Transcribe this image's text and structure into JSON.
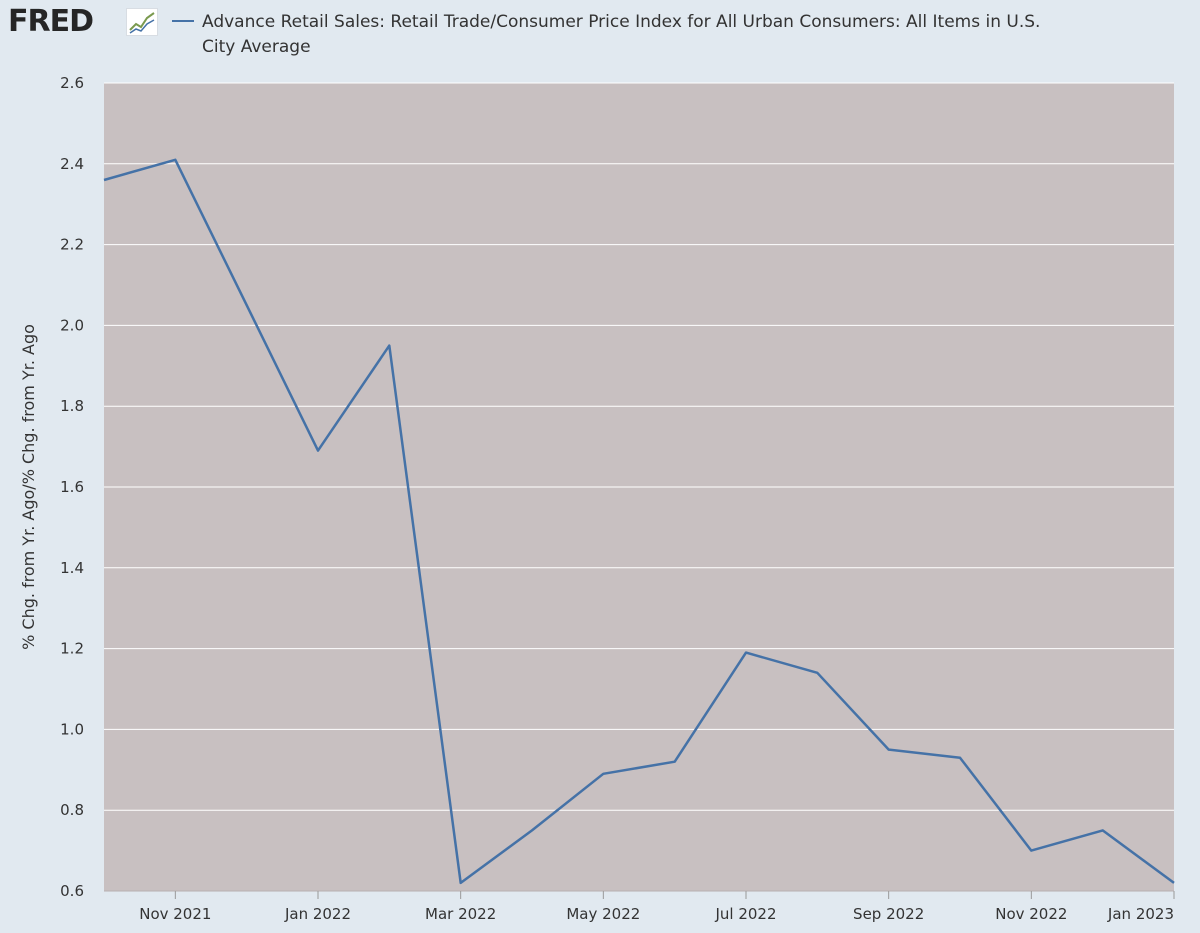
{
  "brand": {
    "logo_text": "FRED",
    "logo_icon": "trend-line-icon"
  },
  "colors": {
    "page_background": "#e1e9f0",
    "plot_background": "#c8c0c1",
    "gridline": "#ffffff",
    "series_line": "#4572a7",
    "axis_text": "#333333"
  },
  "chart_data": {
    "type": "line",
    "title": "",
    "ylabel": "% Chg. from Yr. Ago/% Chg. from Yr. Ago",
    "xlabel": "",
    "ylim": [
      0.6,
      2.6
    ],
    "yticks": [
      0.6,
      0.8,
      1.0,
      1.2,
      1.4,
      1.6,
      1.8,
      2.0,
      2.2,
      2.4,
      2.6
    ],
    "yticks_labels": [
      "0.6",
      "0.8",
      "1.0",
      "1.2",
      "1.4",
      "1.6",
      "1.8",
      "2.0",
      "2.2",
      "2.4",
      "2.6"
    ],
    "xlim": [
      "2021-10",
      "2023-01"
    ],
    "xticks": [
      "2021-11",
      "2022-01",
      "2022-03",
      "2022-05",
      "2022-07",
      "2022-09",
      "2022-11",
      "2023-01"
    ],
    "xticks_labels": [
      "Nov 2021",
      "Jan 2022",
      "Mar 2022",
      "May 2022",
      "Jul 2022",
      "Sep 2022",
      "Nov 2022",
      "Jan 2023"
    ],
    "grid": "horizontal",
    "legend": "top",
    "x": [
      "2021-10",
      "2021-11",
      "2021-12",
      "2022-01",
      "2022-02",
      "2022-03",
      "2022-04",
      "2022-05",
      "2022-06",
      "2022-07",
      "2022-08",
      "2022-09",
      "2022-10",
      "2022-11",
      "2022-12",
      "2023-01"
    ],
    "series": [
      {
        "name": "Advance Retail Sales: Retail Trade/Consumer Price Index for All Urban Consumers: All Items in U.S. City Average",
        "values": [
          2.36,
          2.41,
          2.05,
          1.69,
          1.95,
          0.62,
          0.75,
          0.89,
          0.92,
          1.19,
          1.14,
          0.95,
          0.93,
          0.7,
          0.75,
          0.62
        ]
      }
    ]
  }
}
